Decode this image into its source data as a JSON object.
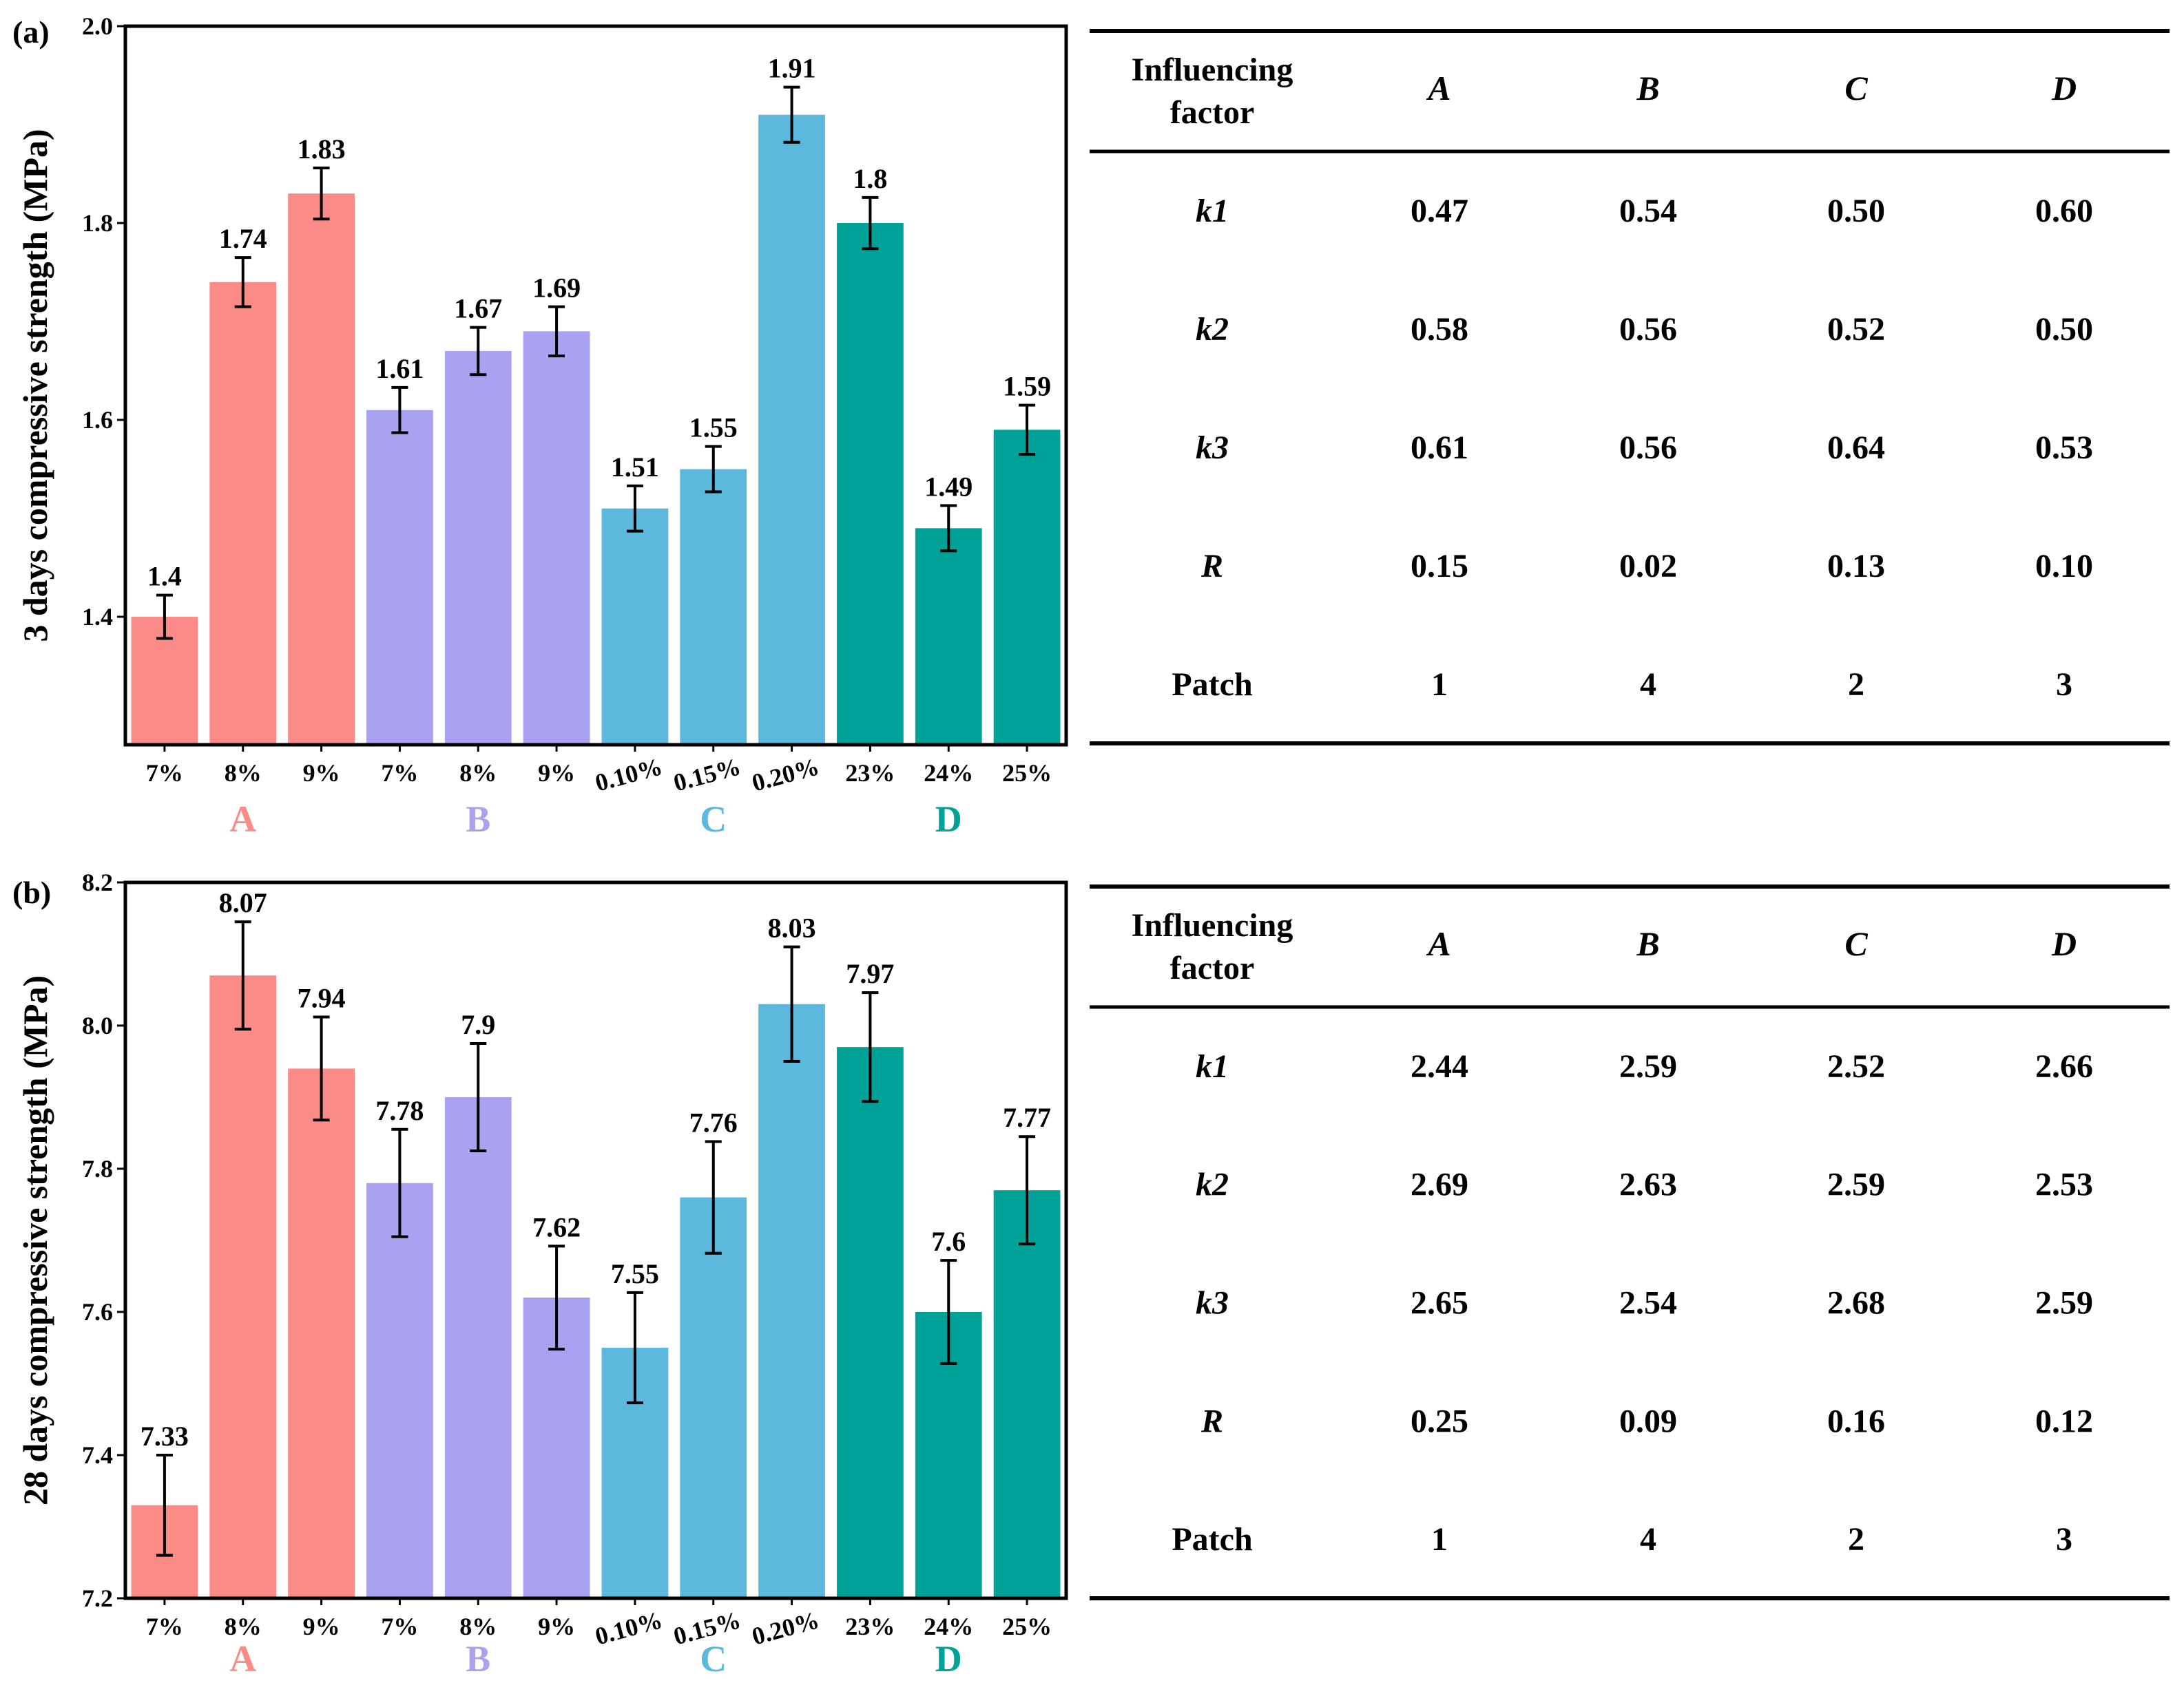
{
  "chart_data": [
    {
      "type": "bar",
      "panel_label": "(a)",
      "ylabel": "3 days compressive strength (MPa)",
      "ylim": [
        1.27,
        2.0
      ],
      "yticks": [
        1.4,
        1.6,
        1.8,
        2.0
      ],
      "ytick_labels": [
        "1.4",
        "1.6",
        "1.8",
        "2.0"
      ],
      "categories": [
        "7%",
        "8%",
        "9%",
        "7%",
        "8%",
        "9%",
        "0.10%",
        "0.15%",
        "0.20%",
        "23%",
        "24%",
        "25%"
      ],
      "groups": [
        {
          "label": "A",
          "color": "#fb8b87",
          "range": [
            0,
            2
          ]
        },
        {
          "label": "B",
          "color": "#a8a2f0",
          "range": [
            3,
            5
          ]
        },
        {
          "label": "C",
          "color": "#5cb8dc",
          "range": [
            6,
            8
          ]
        },
        {
          "label": "D",
          "color": "#00a297",
          "range": [
            9,
            11
          ]
        }
      ],
      "values": [
        1.4,
        1.74,
        1.83,
        1.61,
        1.67,
        1.69,
        1.51,
        1.55,
        1.91,
        1.8,
        1.49,
        1.59
      ],
      "value_labels": [
        "1.4",
        "1.74",
        "1.83",
        "1.61",
        "1.67",
        "1.69",
        "1.51",
        "1.55",
        "1.91",
        "1.8",
        "1.49",
        "1.59"
      ],
      "errors": [
        0.022,
        0.025,
        0.026,
        0.023,
        0.024,
        0.025,
        0.023,
        0.023,
        0.028,
        0.026,
        0.023,
        0.025
      ]
    },
    {
      "type": "bar",
      "panel_label": "(b)",
      "ylabel": "28 days compressive strength (MPa)",
      "ylim": [
        7.2,
        8.2
      ],
      "yticks": [
        7.2,
        7.4,
        7.6,
        7.8,
        8.0,
        8.2
      ],
      "ytick_labels": [
        "7.2",
        "7.4",
        "7.6",
        "7.8",
        "8.0",
        "8.2"
      ],
      "categories": [
        "7%",
        "8%",
        "9%",
        "7%",
        "8%",
        "9%",
        "0.10%",
        "0.15%",
        "0.20%",
        "23%",
        "24%",
        "25%"
      ],
      "groups": [
        {
          "label": "A",
          "color": "#fb8b87",
          "range": [
            0,
            2
          ]
        },
        {
          "label": "B",
          "color": "#a8a2f0",
          "range": [
            3,
            5
          ]
        },
        {
          "label": "C",
          "color": "#5cb8dc",
          "range": [
            6,
            8
          ]
        },
        {
          "label": "D",
          "color": "#00a297",
          "range": [
            9,
            11
          ]
        }
      ],
      "values": [
        7.33,
        8.07,
        7.94,
        7.78,
        7.9,
        7.62,
        7.55,
        7.76,
        8.03,
        7.97,
        7.6,
        7.77
      ],
      "value_labels": [
        "7.33",
        "8.07",
        "7.94",
        "7.78",
        "7.9",
        "7.62",
        "7.55",
        "7.76",
        "8.03",
        "7.97",
        "7.6",
        "7.77"
      ],
      "errors": [
        0.07,
        0.075,
        0.072,
        0.075,
        0.075,
        0.072,
        0.077,
        0.078,
        0.08,
        0.076,
        0.072,
        0.075
      ]
    }
  ],
  "tables": [
    {
      "header": [
        "Influencing factor",
        "A",
        "B",
        "C",
        "D"
      ],
      "rows": [
        [
          "k1",
          "0.47",
          "0.54",
          "0.50",
          "0.60"
        ],
        [
          "k2",
          "0.58",
          "0.56",
          "0.52",
          "0.50"
        ],
        [
          "k3",
          "0.61",
          "0.56",
          "0.64",
          "0.53"
        ],
        [
          "R",
          "0.15",
          "0.02",
          "0.13",
          "0.10"
        ],
        [
          "Patch",
          "1",
          "4",
          "2",
          "3"
        ]
      ]
    },
    {
      "header": [
        "Influencing factor",
        "A",
        "B",
        "C",
        "D"
      ],
      "rows": [
        [
          "k1",
          "2.44",
          "2.59",
          "2.52",
          "2.66"
        ],
        [
          "k2",
          "2.69",
          "2.63",
          "2.59",
          "2.53"
        ],
        [
          "k3",
          "2.65",
          "2.54",
          "2.68",
          "2.59"
        ],
        [
          "R",
          "0.25",
          "0.09",
          "0.16",
          "0.12"
        ],
        [
          "Patch",
          "1",
          "4",
          "2",
          "3"
        ]
      ]
    }
  ]
}
